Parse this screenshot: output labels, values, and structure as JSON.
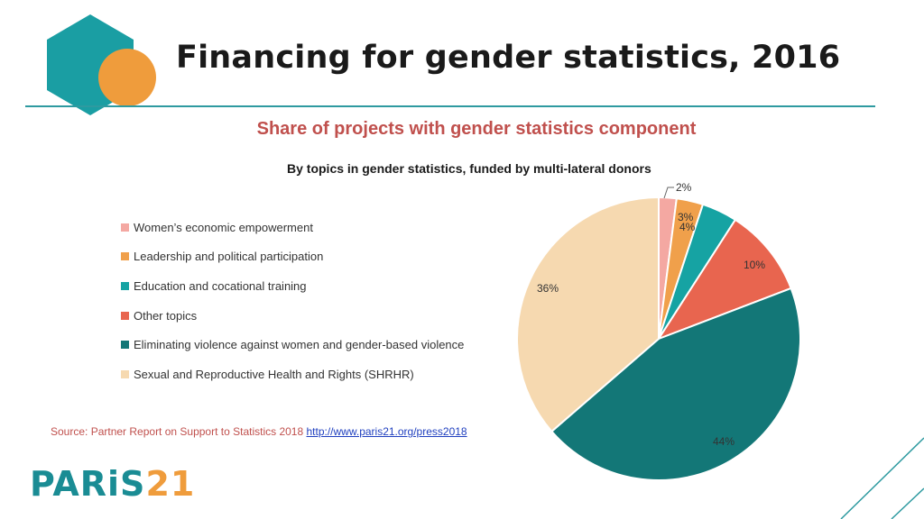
{
  "header": {
    "title": "Financing for gender statistics, 2016",
    "subtitle": "Share of projects with gender statistics component"
  },
  "chart_data": {
    "type": "pie",
    "title": "By topics in gender statistics, funded by multi-lateral donors",
    "categories": [
      "Women’s economic empowerment",
      "Leadership and political participation",
      "Education and cocational training",
      "Other topics",
      "Eliminating violence against women and gender-based violence",
      "Sexual and Reproductive Health and Rights (SHRHR)"
    ],
    "values": [
      2,
      3,
      4,
      10,
      44,
      36
    ],
    "value_labels": [
      "2%",
      "3%",
      "4%",
      "10%",
      "44%",
      "36%"
    ],
    "colors": [
      "#f4a8a2",
      "#f0a04b",
      "#16a3a3",
      "#e8654f",
      "#137777",
      "#f6d9b0"
    ],
    "legend_position": "left"
  },
  "footer": {
    "source_text": "Source: Partner Report on Support to Statistics 2018",
    "source_link": "http://www.paris21.org/press2018",
    "brand_main": "PARiS",
    "brand_number": "21"
  },
  "colors": {
    "accent": "#2e9aa0",
    "subtitle": "#c0504d",
    "brand_teal": "#1a8c94",
    "brand_orange": "#ef9c3c"
  }
}
